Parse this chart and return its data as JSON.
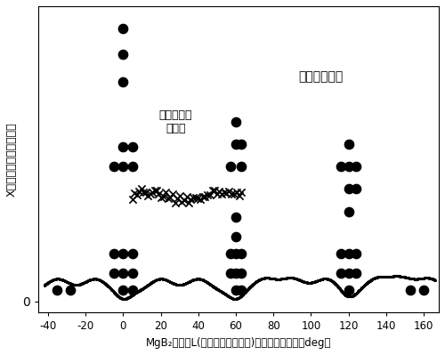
{
  "title": "",
  "xlabel": "MgB₂薄膜のL(ほぼ試料表面法線)の周りの回転角（deg）",
  "ylabel": "X線の強度（任意単位）",
  "xlim": [
    -45,
    168
  ],
  "ylim": [
    -0.04,
    1.05
  ],
  "label_buffer": "バッファー層",
  "label_nobuffer": "バッファー\n層なし",
  "dot_data": [
    [
      0,
      0.97
    ],
    [
      0,
      0.88
    ],
    [
      0,
      0.78
    ],
    [
      0,
      0.55
    ],
    [
      0,
      0.48
    ],
    [
      0,
      0.17
    ],
    [
      0,
      0.1
    ],
    [
      0,
      0.04
    ],
    [
      5,
      0.55
    ],
    [
      5,
      0.48
    ],
    [
      5,
      0.17
    ],
    [
      5,
      0.1
    ],
    [
      5,
      0.04
    ],
    [
      -5,
      0.48
    ],
    [
      -5,
      0.17
    ],
    [
      -5,
      0.1
    ],
    [
      60,
      0.64
    ],
    [
      60,
      0.56
    ],
    [
      60,
      0.3
    ],
    [
      60,
      0.23
    ],
    [
      60,
      0.17
    ],
    [
      60,
      0.1
    ],
    [
      60,
      0.04
    ],
    [
      63,
      0.56
    ],
    [
      63,
      0.48
    ],
    [
      63,
      0.17
    ],
    [
      63,
      0.1
    ],
    [
      63,
      0.04
    ],
    [
      57,
      0.48
    ],
    [
      57,
      0.17
    ],
    [
      57,
      0.1
    ],
    [
      120,
      0.56
    ],
    [
      120,
      0.48
    ],
    [
      120,
      0.4
    ],
    [
      120,
      0.32
    ],
    [
      120,
      0.17
    ],
    [
      120,
      0.1
    ],
    [
      120,
      0.04
    ],
    [
      124,
      0.48
    ],
    [
      124,
      0.4
    ],
    [
      124,
      0.17
    ],
    [
      124,
      0.1
    ],
    [
      116,
      0.48
    ],
    [
      116,
      0.17
    ],
    [
      116,
      0.1
    ],
    [
      -35,
      0.04
    ],
    [
      -28,
      0.04
    ],
    [
      153,
      0.04
    ],
    [
      160,
      0.04
    ]
  ],
  "background_color": "#ffffff"
}
